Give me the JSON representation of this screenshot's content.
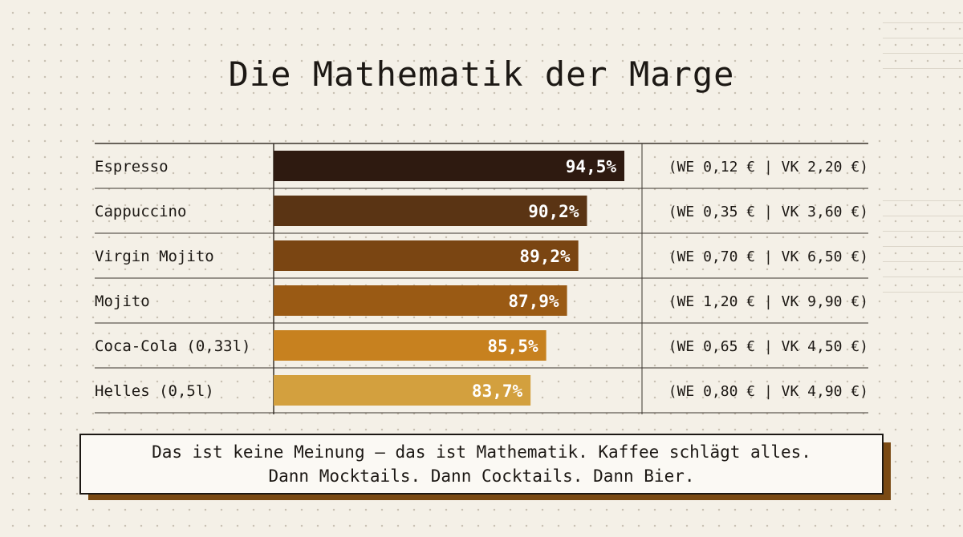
{
  "title": "Die Mathematik der Marge",
  "chart_data": {
    "type": "bar",
    "orientation": "horizontal",
    "categories": [
      "Espresso",
      "Cappuccino",
      "Virgin Mojito",
      "Mojito",
      "Coca-Cola (0,33l)",
      "Helles (0,5l)"
    ],
    "values": [
      94.5,
      90.2,
      89.2,
      87.9,
      85.5,
      83.7
    ],
    "value_labels": [
      "94,5%",
      "90,2%",
      "89,2%",
      "87,9%",
      "85,5%",
      "83,7%"
    ],
    "price_labels": [
      "(WE 0,12 € | VK 2,20 €)",
      "(WE 0,35 € | VK 3,60 €)",
      "(WE 0,70 € | VK 6,50 €)",
      "(WE 1,20 € | VK 9,90 €)",
      "(WE 0,65 € | VK 4,50 €)",
      "(WE 0,80 € | VK 4,90 €)"
    ],
    "colors": [
      "#2e1a10",
      "#5a3414",
      "#7a4512",
      "#9a5a14",
      "#c7811f",
      "#d3a03e"
    ],
    "title": "Die Mathematik der Marge",
    "xlabel": "",
    "ylabel": "",
    "grid": false
  },
  "callout": {
    "line1": "Das ist keine Meinung – das ist Mathematik. Kaffee schlägt alles.",
    "line2": "Dann Mocktails. Dann Cocktails. Dann Bier."
  }
}
